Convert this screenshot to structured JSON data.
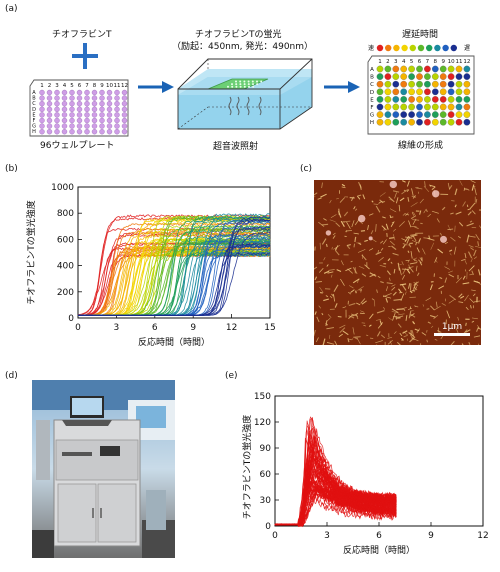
{
  "panels": {
    "a": {
      "label": "(a)",
      "plate_left_title": "チオフラビンT",
      "plate_caption": "96ウェルプレート",
      "plate_columns": [
        "1",
        "2",
        "3",
        "4",
        "5",
        "6",
        "7",
        "8",
        "9",
        "10",
        "11",
        "12"
      ],
      "plate_rows": [
        "A",
        "B",
        "C",
        "D",
        "E",
        "F",
        "G",
        "H"
      ],
      "fluor_title": "チオフラビンTの蛍光",
      "fluor_sub": "（励起：450nm, 発光：490nm）",
      "ultra_caption": "超音波照射",
      "delay_title": "遅延時間",
      "fast": "速",
      "slow": "遅",
      "fiber_caption": "線維の形成",
      "colors": {
        "arrow": "#1a63b5",
        "plus": "#2a6fc3",
        "well_purple": "#cf9ee6",
        "well_border": "#9a6bb8",
        "water": "#9fd6ee",
        "plate_green": "#6ccf75"
      }
    },
    "b": {
      "label": "(b)",
      "ylabel": "チオフラビンTの蛍光強度",
      "xlabel": "反応時間（時間）",
      "xticks": [
        "0",
        "3",
        "6",
        "9",
        "12",
        "15"
      ],
      "yticks": [
        "0",
        "200",
        "400",
        "600",
        "800",
        "1000"
      ],
      "colors": [
        "#e02020",
        "#f07a10",
        "#f5b400",
        "#f2d400",
        "#b9d400",
        "#5cb82a",
        "#1e9f5a",
        "#1a8aa0",
        "#2060c0",
        "#1a2e90"
      ]
    },
    "c": {
      "label": "(c)",
      "scale": "1μm",
      "colors": {
        "bg": "#7a2a0c",
        "fiber": "#e9c07a"
      }
    },
    "d": {
      "label": "(d)"
    },
    "e": {
      "label": "(e)",
      "ylabel": "チオフラビンTの蛍光強度",
      "xlabel": "反応時間（時間）",
      "xticks": [
        "0",
        "3",
        "6",
        "9",
        "12"
      ],
      "yticks": [
        "0",
        "30",
        "60",
        "90",
        "120",
        "150"
      ],
      "colors": {
        "curve": "#e01010"
      }
    }
  },
  "chart_data": [
    {
      "type": "line",
      "panel": "b",
      "xlabel": "反応時間（時間）",
      "ylabel": "チオフラビンTの蛍光強度",
      "xlim": [
        0,
        15
      ],
      "ylim": [
        0,
        1000
      ],
      "series_summary": "96 sigmoidal curves, colour-coded by lag time (red earliest to navy latest)",
      "lag_time_range": [
        1.8,
        12
      ],
      "plateau_range": [
        450,
        780
      ]
    },
    {
      "type": "line",
      "panel": "e",
      "xlabel": "反応時間（時間）",
      "ylabel": "チオフラビンTの蛍光強度",
      "xlim": [
        0,
        12
      ],
      "ylim": [
        0,
        150
      ],
      "series_summary": "many red curves rising near 1.5 h, peaking 40–130 then decaying until ~7 h",
      "onset": 1.3,
      "peak_time_range": [
        1.7,
        2.5
      ],
      "peak_range": [
        40,
        130
      ],
      "end_time": 7
    }
  ]
}
